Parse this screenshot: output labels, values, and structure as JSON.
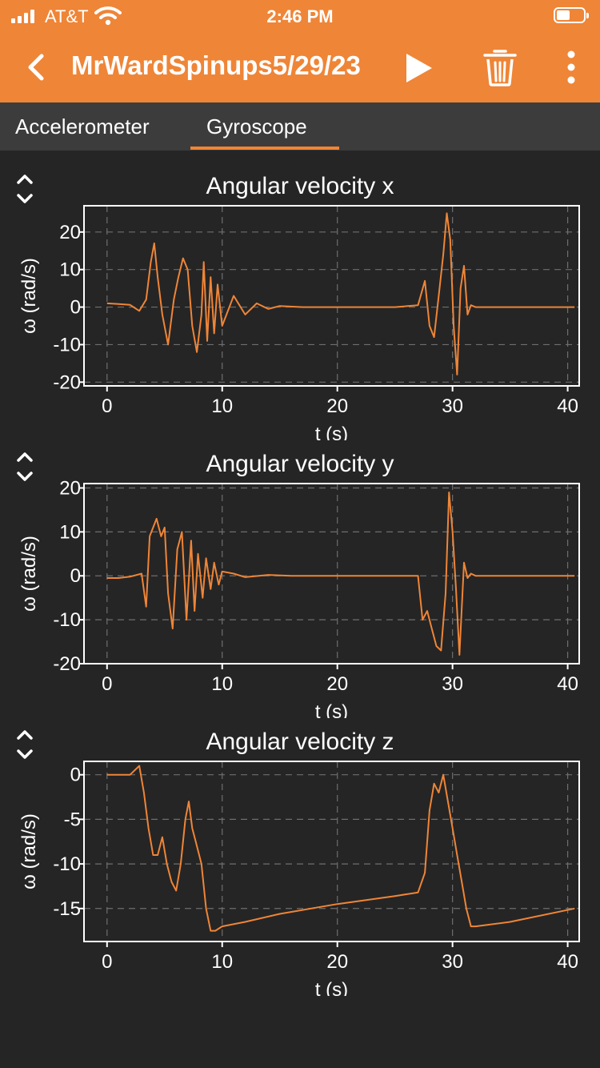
{
  "status_bar": {
    "carrier": "AT&T",
    "time": "2:46 PM"
  },
  "nav": {
    "title": "MrWardSpinups5/29/23",
    "icons": [
      "back-chevron-icon",
      "play-icon",
      "trash-icon",
      "more-vertical-icon"
    ]
  },
  "tabs": [
    {
      "label": "Accelerometer",
      "selected": false
    },
    {
      "label": "Gyroscope",
      "selected": true
    }
  ],
  "colors": {
    "accent": "#ef8537",
    "background": "#252525",
    "tab_bar": "#3c3c3c",
    "line": "#ef8537"
  },
  "chart_data": [
    {
      "type": "line",
      "title": "Angular velocity x",
      "xlabel": "t (s)",
      "ylabel": "ω (rad/s)",
      "xlim": [
        -2,
        41
      ],
      "ylim": [
        -21,
        27
      ],
      "xticks": [
        0,
        10,
        20,
        30,
        40
      ],
      "yticks": [
        -20,
        -10,
        0,
        10,
        20
      ],
      "grid": true,
      "series": [
        {
          "x": [
            0,
            1,
            2,
            2.8,
            3.4,
            3.8,
            4.1,
            4.4,
            4.8,
            5.3,
            5.8,
            6.2,
            6.6,
            7.0,
            7.4,
            7.8,
            8.2,
            8.4,
            8.7,
            9.0,
            9.3,
            9.6,
            10,
            11,
            12,
            13,
            14,
            15,
            17,
            20,
            25,
            27,
            27.6,
            28,
            28.4,
            28.8,
            29.2,
            29.5,
            29.8,
            30.1,
            30.4,
            30.7,
            31.0,
            31.3,
            31.6,
            32,
            33,
            35,
            40.6
          ],
          "y": [
            1,
            0.8,
            0.6,
            -1,
            2,
            12,
            17,
            8,
            -2,
            -10,
            2,
            8,
            13,
            10,
            -5,
            -12,
            -2,
            12,
            -9,
            8,
            -7,
            6,
            -5,
            3,
            -2,
            1,
            -0.5,
            0.3,
            0,
            0,
            0,
            0.5,
            7,
            -5,
            -8,
            3,
            14,
            25,
            18,
            -5,
            -18,
            5,
            11,
            -2,
            0.5,
            0,
            0,
            0,
            0
          ]
        }
      ]
    },
    {
      "type": "line",
      "title": "Angular velocity y",
      "xlabel": "t (s)",
      "ylabel": "ω (rad/s)",
      "xlim": [
        -2,
        41
      ],
      "ylim": [
        -20,
        21
      ],
      "xticks": [
        0,
        10,
        20,
        30,
        40
      ],
      "yticks": [
        -20,
        -10,
        0,
        10,
        20
      ],
      "grid": true,
      "series": [
        {
          "x": [
            0,
            1,
            2,
            3,
            3.4,
            3.7,
            4.0,
            4.3,
            4.7,
            5.0,
            5.3,
            5.7,
            6.1,
            6.5,
            6.9,
            7.3,
            7.6,
            7.9,
            8.3,
            8.6,
            9.0,
            9.3,
            9.7,
            10,
            11,
            12,
            14,
            16,
            20,
            27,
            27.4,
            27.8,
            28.2,
            28.6,
            29,
            29.4,
            29.7,
            30.0,
            30.3,
            30.6,
            31.0,
            31.3,
            31.6,
            32,
            34,
            40.6
          ],
          "y": [
            -0.5,
            -0.5,
            -0.2,
            0.5,
            -7,
            9,
            11,
            13,
            9,
            11,
            -4,
            -12,
            6,
            10,
            -10,
            8,
            -8,
            5,
            -5,
            4,
            -3,
            3,
            -2,
            1,
            0.5,
            -0.3,
            0.2,
            0,
            0,
            0,
            -10,
            -8,
            -12,
            -16,
            -17,
            -4,
            19,
            10,
            -3,
            -18,
            3,
            -0.5,
            0.5,
            0,
            0,
            0
          ]
        }
      ]
    },
    {
      "type": "line",
      "title": "Angular velocity z",
      "xlabel": "t (s)",
      "ylabel": "ω (rad/s)",
      "xlim": [
        -2,
        41
      ],
      "ylim": [
        -18.7,
        1.5
      ],
      "xticks": [
        0,
        10,
        20,
        30,
        40
      ],
      "yticks": [
        -15,
        -10,
        -5,
        0
      ],
      "grid": true,
      "series": [
        {
          "x": [
            0,
            1,
            2,
            2.8,
            3.2,
            3.6,
            4.0,
            4.4,
            4.8,
            5.2,
            5.6,
            6.0,
            6.4,
            6.8,
            7.1,
            7.4,
            7.8,
            8.2,
            8.6,
            9.0,
            9.4,
            10,
            12,
            15,
            20,
            25,
            27,
            27.6,
            28,
            28.4,
            28.8,
            29.2,
            29.6,
            30.0,
            30.4,
            30.8,
            31.2,
            31.6,
            32,
            35,
            40.6
          ],
          "y": [
            0,
            0,
            0,
            1,
            -2,
            -6,
            -9,
            -9,
            -7,
            -10,
            -12,
            -13,
            -10,
            -5,
            -3,
            -6,
            -8,
            -10,
            -15,
            -17.5,
            -17.5,
            -17,
            -16.5,
            -15.6,
            -14.5,
            -13.6,
            -13.2,
            -11,
            -4,
            -1,
            -2,
            0,
            -3,
            -6,
            -9,
            -12,
            -15,
            -17,
            -17,
            -16.5,
            -15
          ]
        }
      ]
    }
  ]
}
